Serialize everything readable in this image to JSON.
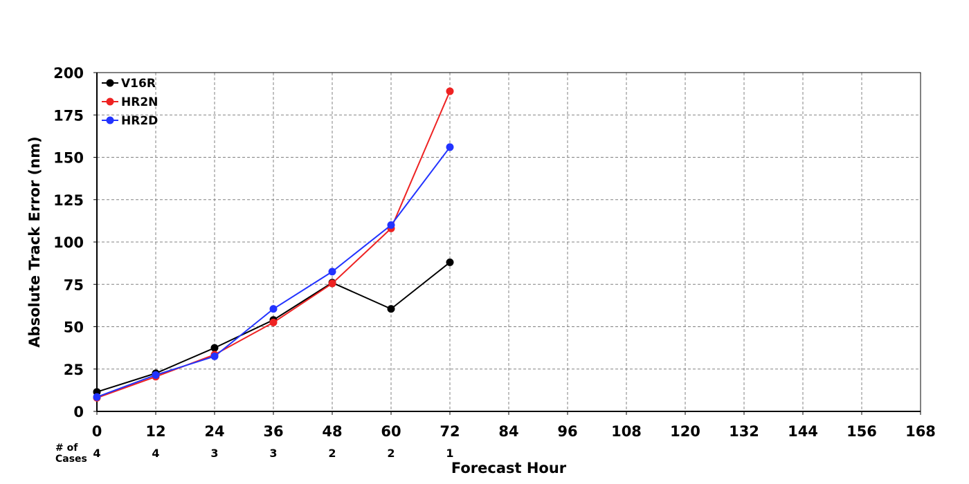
{
  "chart_data": {
    "type": "line",
    "xlabel": "Forecast Hour",
    "ylabel": "Absolute Track Error (nm)",
    "xlim": [
      0,
      168
    ],
    "ylim": [
      0,
      200
    ],
    "x_ticks": [
      0,
      12,
      24,
      36,
      48,
      60,
      72,
      84,
      96,
      108,
      120,
      132,
      144,
      156,
      168
    ],
    "y_ticks": [
      0,
      25,
      50,
      75,
      100,
      125,
      150,
      175,
      200
    ],
    "grid": true,
    "legend_position": "top-left",
    "x": [
      0,
      12,
      24,
      36,
      48,
      60,
      72
    ],
    "series": [
      {
        "name": "V16R",
        "color": "#000000",
        "values": [
          11.5,
          22.5,
          37.5,
          54,
          76,
          60.5,
          88
        ]
      },
      {
        "name": "HR2N",
        "color": "#ee2222",
        "values": [
          8,
          20.5,
          33.5,
          52.5,
          75.5,
          108,
          189
        ]
      },
      {
        "name": "HR2D",
        "color": "#2233ff",
        "values": [
          8.5,
          21.5,
          32.5,
          60.5,
          82.5,
          110,
          156
        ]
      }
    ],
    "cases_label": [
      "# of",
      "Cases"
    ],
    "cases": [
      {
        "hour": 0,
        "count": "4"
      },
      {
        "hour": 12,
        "count": "4"
      },
      {
        "hour": 24,
        "count": "3"
      },
      {
        "hour": 36,
        "count": "3"
      },
      {
        "hour": 48,
        "count": "2"
      },
      {
        "hour": 60,
        "count": "2"
      },
      {
        "hour": 72,
        "count": "1"
      }
    ]
  }
}
